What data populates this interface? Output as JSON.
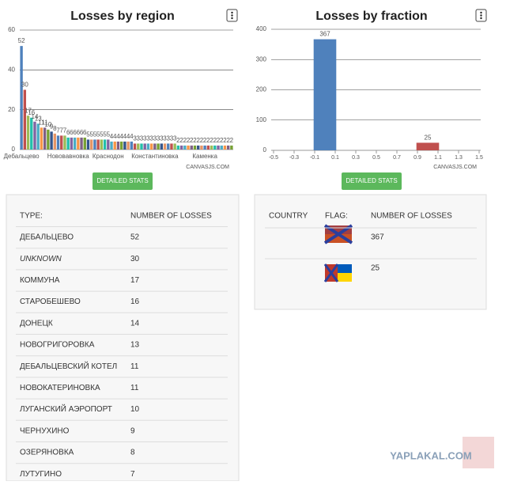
{
  "chart_data": [
    {
      "type": "bar",
      "title": "Losses by region",
      "credit": "CANVASJS.COM",
      "button": "DETAILED STATS",
      "categories": [
        "Дебальцево",
        null,
        null,
        null,
        null,
        null,
        null,
        null,
        null,
        null,
        null,
        null,
        null,
        null,
        "Нововавновка",
        null,
        null,
        null,
        null,
        null,
        null,
        null,
        null,
        null,
        null,
        null,
        "Краснодон",
        null,
        null,
        null,
        null,
        null,
        null,
        null,
        null,
        null,
        null,
        null,
        null,
        null,
        "Константиновка",
        null,
        null,
        null,
        null,
        null,
        null,
        null,
        null,
        null,
        null,
        null,
        null,
        null,
        null,
        "Каменка",
        null,
        null,
        null,
        null,
        null,
        null,
        null,
        null
      ],
      "values": [
        52,
        30,
        17,
        16,
        14,
        13,
        11,
        11,
        10,
        9,
        8,
        7,
        7,
        7,
        6,
        6,
        6,
        6,
        6,
        6,
        5,
        5,
        5,
        5,
        5,
        5,
        5,
        4,
        4,
        4,
        4,
        4,
        4,
        4,
        3,
        3,
        3,
        3,
        3,
        3,
        3,
        3,
        3,
        3,
        3,
        3,
        3,
        2,
        2,
        2,
        2,
        2,
        2,
        2,
        2,
        2,
        2,
        2,
        2,
        2,
        2,
        2,
        2,
        2
      ],
      "colors": [
        "#4F81BC",
        "#C0504E",
        "#9BBB58",
        "#23BFAA",
        "#8064A1",
        "#4AACC5",
        "#F79647",
        "#7F6084",
        "#77A033",
        "#33558B",
        "#E59566"
      ],
      "ylim": [
        0,
        60
      ],
      "yticks": [
        0,
        20,
        40,
        60
      ],
      "grid": true
    },
    {
      "type": "bar",
      "title": "Losses by fraction",
      "credit": "CANVASJS.COM",
      "button": "DETAILED STATS",
      "x": [
        0,
        1
      ],
      "values": [
        367,
        25
      ],
      "colors": [
        "#4F81BC",
        "#C0504E"
      ],
      "xlim": [
        -0.5,
        1.5
      ],
      "xticks": [
        -0.5,
        -0.3,
        -0.1,
        0.1,
        0.3,
        0.5,
        0.7,
        0.9,
        1.1,
        1.3,
        1.5
      ],
      "ylim": [
        0,
        400
      ],
      "yticks": [
        0,
        100,
        200,
        300,
        400
      ],
      "grid": true
    }
  ],
  "region_table": {
    "header": [
      "TYPE:",
      "NUMBER OF LOSSES"
    ],
    "rows": [
      [
        "ДЕБАЛЬЦЕВО",
        "52"
      ],
      [
        "UNKNOWN",
        "30"
      ],
      [
        "КОММУНА",
        "17"
      ],
      [
        "СТАРОБЕШЕВО",
        "16"
      ],
      [
        "ДОНЕЦК",
        "14"
      ],
      [
        "НОВОГРИГОРОВКА",
        "13"
      ],
      [
        "ДЕБАЛЬЦЕВСКИЙ КОТЕЛ",
        "11"
      ],
      [
        "НОВОКАТЕРИНОВКА",
        "11"
      ],
      [
        "ЛУГАНСКИЙ АЭРОПОРТ",
        "10"
      ],
      [
        "ЧЕРНУХИНО",
        "9"
      ],
      [
        "ОЗЕРЯНОВКА",
        "8"
      ],
      [
        "ЛУТУГИНО",
        "7"
      ]
    ]
  },
  "fraction_table": {
    "header": [
      "COUNTRY",
      "FLAG:",
      "NUMBER OF LOSSES"
    ],
    "rows": [
      "367",
      "25"
    ]
  },
  "watermark": "YAPLAKAL.COM"
}
